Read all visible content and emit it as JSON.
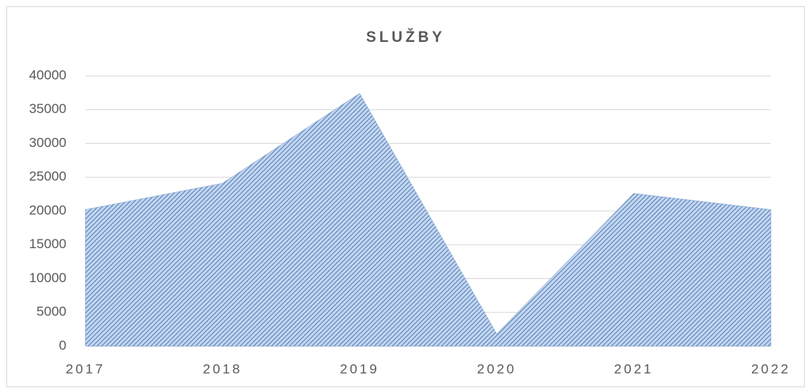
{
  "chart_data": {
    "type": "area",
    "title": "SLUŽBY",
    "categories": [
      "2017",
      "2018",
      "2019",
      "2020",
      "2021",
      "2022"
    ],
    "values": [
      20200,
      24100,
      37400,
      1800,
      22600,
      20200
    ],
    "color": "#4f81bd",
    "ylim": [
      0,
      40000
    ],
    "yticks": [
      0,
      5000,
      10000,
      15000,
      20000,
      25000,
      30000,
      35000,
      40000
    ],
    "grid": true
  }
}
